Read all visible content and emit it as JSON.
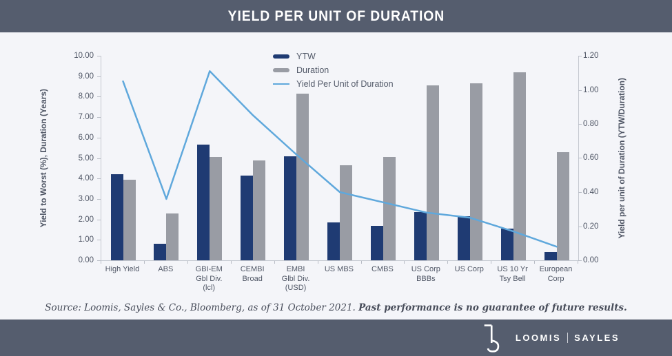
{
  "header": {
    "title": "YIELD PER UNIT OF DURATION"
  },
  "chart_data": {
    "type": "bar",
    "categories": [
      "High Yield",
      "ABS",
      "GBI-EM\nGbl Div.\n(lcl)",
      "CEMBI\nBroad",
      "EMBI\nGlbl Div.\n(USD)",
      "US MBS",
      "CMBS",
      "US Corp\nBBBs",
      "US Corp",
      "US 10 Yr\nTsy Bell",
      "European\nCorp"
    ],
    "series": [
      {
        "name": "YTW",
        "type": "bar",
        "axis": "left",
        "color": "#1f3b73",
        "values": [
          4.2,
          0.8,
          5.65,
          4.15,
          5.1,
          1.85,
          1.7,
          2.35,
          2.15,
          1.55,
          0.4
        ]
      },
      {
        "name": "Duration",
        "type": "bar",
        "axis": "left",
        "color": "#999ca4",
        "values": [
          3.95,
          2.3,
          5.05,
          4.9,
          8.15,
          4.65,
          5.05,
          8.55,
          8.65,
          9.2,
          5.3
        ]
      },
      {
        "name": "Yield Per Unit of Duration",
        "type": "line",
        "axis": "right",
        "color": "#5fa8dc",
        "values": [
          1.05,
          0.36,
          1.11,
          0.85,
          0.62,
          0.4,
          0.34,
          0.28,
          0.25,
          0.17,
          0.08
        ]
      }
    ],
    "left_axis": {
      "label": "Yield to Worst (%), Duration (Years)",
      "min": 0,
      "max": 10,
      "step": 1
    },
    "right_axis": {
      "label": "Yield per unit of Duration (YTW/Duration)",
      "min": 0,
      "max": 1.2,
      "step": 0.2
    },
    "grid": false,
    "legend_position": "top-center"
  },
  "source_note": {
    "normal": "Source: Loomis, Sayles & Co., Bloomberg, as of 31 October 2021. ",
    "bold": "Past performance is no guarantee of future results."
  },
  "footer": {
    "brand_left": "LOOMIS",
    "brand_right": "SAYLES",
    "logo": "ls-monogram"
  },
  "colors": {
    "header_bg": "#555d6e",
    "footer_bg": "#555d6e",
    "page_bg": "#f4f5f9",
    "axis_line": "#c4c8d0",
    "tick_text": "#4f5665",
    "ytw_bar": "#1f3b73",
    "duration_bar": "#999ca4",
    "ypud_line": "#5fa8dc"
  }
}
